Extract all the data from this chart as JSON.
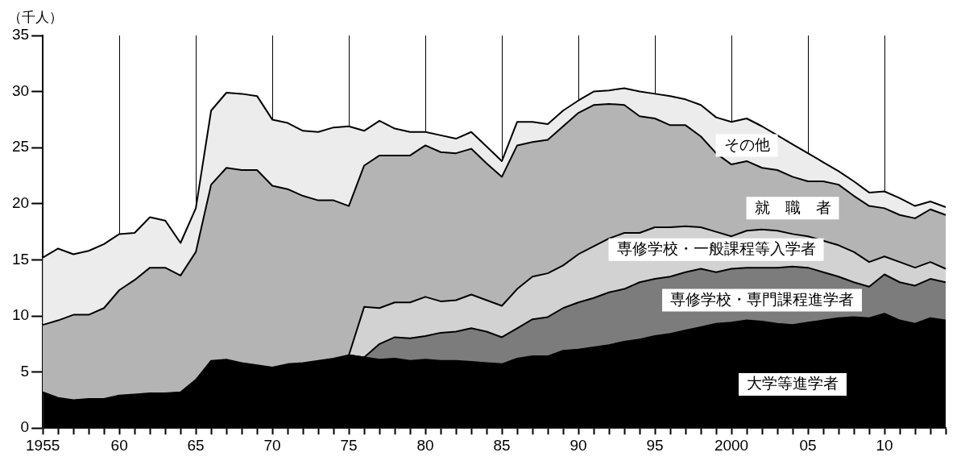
{
  "chart_data": {
    "type": "area",
    "stacked": true,
    "ylabel": "（千人）",
    "categories": [
      "1955",
      null,
      null,
      null,
      null,
      "60",
      null,
      null,
      null,
      null,
      "65",
      null,
      null,
      null,
      null,
      "70",
      null,
      null,
      null,
      null,
      "75",
      null,
      null,
      null,
      null,
      "80",
      null,
      null,
      null,
      null,
      "85",
      null,
      null,
      null,
      null,
      "90",
      null,
      null,
      null,
      null,
      "95",
      null,
      null,
      null,
      null,
      "2000",
      null,
      null,
      null,
      null,
      "05",
      null,
      null,
      null,
      null,
      "10",
      null,
      null,
      null,
      null
    ],
    "ylim": [
      0,
      35
    ],
    "yticks": [
      0,
      5,
      10,
      15,
      20,
      25,
      30,
      35
    ],
    "grid": "x",
    "legend": false,
    "series": [
      {
        "name": "大学等進学者",
        "color": "#000000",
        "values": [
          3.2,
          2.7,
          2.5,
          2.6,
          2.6,
          2.9,
          3.0,
          3.1,
          3.1,
          3.2,
          4.3,
          6.0,
          6.1,
          5.8,
          5.6,
          5.4,
          5.7,
          5.8,
          6.0,
          6.2,
          6.5,
          6.3,
          6.1,
          6.2,
          6.0,
          6.1,
          6.0,
          6.0,
          5.9,
          5.8,
          5.7,
          6.2,
          6.4,
          6.4,
          6.9,
          7.0,
          7.2,
          7.4,
          7.7,
          7.9,
          8.2,
          8.4,
          8.7,
          9.0,
          9.3,
          9.4,
          9.6,
          9.5,
          9.3,
          9.2,
          9.4,
          9.6,
          9.8,
          9.9,
          9.8,
          10.2,
          9.6,
          9.3,
          9.8,
          9.6
        ]
      },
      {
        "name": "専修学校・専門課程進学者",
        "color": "#7c7c7c",
        "values": [
          null,
          null,
          null,
          null,
          null,
          null,
          null,
          null,
          null,
          null,
          null,
          null,
          null,
          null,
          null,
          null,
          null,
          null,
          null,
          null,
          0,
          0,
          1.4,
          1.9,
          2.0,
          2.1,
          2.5,
          2.6,
          3.0,
          2.8,
          2.4,
          2.7,
          3.3,
          3.5,
          3.8,
          4.2,
          4.4,
          4.7,
          4.7,
          5.1,
          5.1,
          5.1,
          5.2,
          5.2,
          4.6,
          4.8,
          4.7,
          4.8,
          5.0,
          5.2,
          4.9,
          4.3,
          3.7,
          3.1,
          2.8,
          3.5,
          3.4,
          3.4,
          3.5,
          3.4
        ]
      },
      {
        "name": "専修学校・一般課程等入学者",
        "color": "#d2d2d2",
        "values": [
          null,
          null,
          null,
          null,
          null,
          null,
          null,
          null,
          null,
          null,
          null,
          null,
          null,
          null,
          null,
          null,
          null,
          null,
          null,
          null,
          0,
          4.5,
          3.2,
          3.1,
          3.2,
          3.5,
          2.8,
          2.8,
          3.0,
          2.8,
          2.8,
          3.5,
          3.8,
          3.9,
          3.8,
          4.3,
          4.6,
          4.8,
          5.0,
          4.4,
          4.6,
          4.4,
          4.1,
          3.7,
          3.6,
          2.9,
          3.3,
          3.4,
          3.3,
          2.9,
          2.8,
          2.8,
          2.8,
          2.7,
          2.2,
          1.6,
          1.8,
          1.6,
          1.5,
          1.2
        ]
      },
      {
        "name": "就　職　者",
        "color": "#b4b4b4",
        "values": [
          6.0,
          6.9,
          7.6,
          7.5,
          8.1,
          9.4,
          10.2,
          11.2,
          11.2,
          10.4,
          11.4,
          15.7,
          17.1,
          17.2,
          17.4,
          16.2,
          15.6,
          14.9,
          14.3,
          14.1,
          13.3,
          12.6,
          13.6,
          13.1,
          13.1,
          13.5,
          13.3,
          13.1,
          13.0,
          12.2,
          11.5,
          12.8,
          12.0,
          11.9,
          12.4,
          12.6,
          12.6,
          12.0,
          11.4,
          10.4,
          9.7,
          9.1,
          9.0,
          8.1,
          7.0,
          6.4,
          6.2,
          5.5,
          5.4,
          5.1,
          4.9,
          5.3,
          5.4,
          5.0,
          5.0,
          4.3,
          4.2,
          4.4,
          4.7,
          4.8
        ]
      },
      {
        "name": "その他",
        "color": "#ececec",
        "values": [
          6.0,
          6.4,
          5.4,
          5.7,
          5.7,
          5.0,
          4.2,
          4.5,
          4.2,
          2.9,
          3.9,
          6.6,
          6.7,
          6.8,
          6.6,
          5.9,
          5.9,
          5.8,
          6.1,
          6.5,
          7.1,
          3.1,
          3.1,
          2.4,
          2.1,
          1.2,
          1.5,
          1.3,
          1.5,
          1.5,
          1.4,
          2.1,
          1.8,
          1.4,
          1.4,
          1.1,
          1.2,
          1.2,
          1.5,
          2.2,
          2.2,
          2.6,
          2.3,
          2.8,
          3.2,
          3.8,
          3.8,
          3.7,
          3.1,
          2.9,
          2.5,
          1.7,
          1.2,
          1.3,
          1.2,
          1.5,
          1.5,
          1.1,
          0.7,
          0.7
        ]
      }
    ]
  }
}
